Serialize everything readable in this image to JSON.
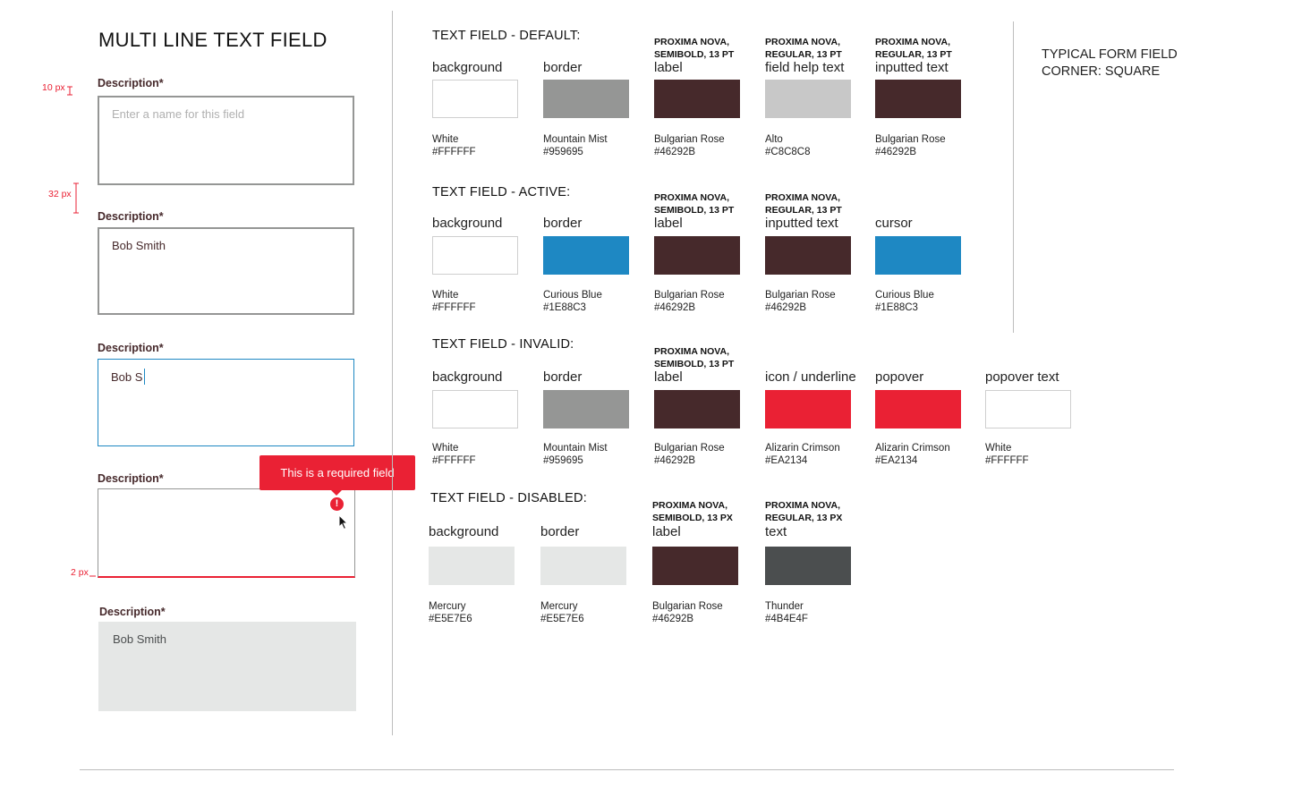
{
  "title": "MULTI LINE TEXT FIELD",
  "fields": {
    "label": "Description*",
    "default_placeholder": "Enter a name for this field",
    "filled_value": "Bob Smith",
    "active_value": "Bob S",
    "disabled_value": "Bob Smith",
    "error_popover": "This is a required field",
    "error_icon_glyph": "!"
  },
  "measurements": {
    "padding": "10 px",
    "spacing": "32 px",
    "underline": "2 px"
  },
  "note": {
    "line1": "TYPICAL FORM FIELD",
    "line2": "CORNER:  SQUARE"
  },
  "sections": {
    "default": {
      "title": "TEXT FIELD - DEFAULT:",
      "items": [
        {
          "font1": "",
          "font2": "",
          "head": "background",
          "name": "White",
          "hex": "#FFFFFF",
          "color": "#FFFFFF"
        },
        {
          "font1": "",
          "font2": "",
          "head": "border",
          "name": "Mountain Mist",
          "hex": "#959695",
          "color": "#959695"
        },
        {
          "font1": "PROXIMA NOVA,",
          "font2": "SEMIBOLD, 13 PT",
          "head": "label",
          "name": "Bulgarian Rose",
          "hex": "#46292B",
          "color": "#46292B"
        },
        {
          "font1": "PROXIMA NOVA,",
          "font2": "REGULAR, 13 PT",
          "head": "field help text",
          "name": "Alto",
          "hex": "#C8C8C8",
          "color": "#C8C8C8"
        },
        {
          "font1": "PROXIMA NOVA,",
          "font2": "REGULAR, 13 PT",
          "head": "inputted text",
          "name": "Bulgarian Rose",
          "hex": "#46292B",
          "color": "#46292B"
        }
      ]
    },
    "active": {
      "title": "TEXT FIELD - ACTIVE:",
      "items": [
        {
          "font1": "",
          "font2": "",
          "head": "background",
          "name": "White",
          "hex": "#FFFFFF",
          "color": "#FFFFFF"
        },
        {
          "font1": "",
          "font2": "",
          "head": "border",
          "name": "Curious Blue",
          "hex": "#1E88C3",
          "color": "#1E88C3"
        },
        {
          "font1": "PROXIMA NOVA,",
          "font2": "SEMIBOLD, 13 PT",
          "head": "label",
          "name": "Bulgarian Rose",
          "hex": "#46292B",
          "color": "#46292B"
        },
        {
          "font1": "PROXIMA NOVA,",
          "font2": "REGULAR, 13 PT",
          "head": "inputted text",
          "name": "Bulgarian Rose",
          "hex": "#46292B",
          "color": "#46292B"
        },
        {
          "font1": "",
          "font2": "",
          "head": "cursor",
          "name": "Curious Blue",
          "hex": "#1E88C3",
          "color": "#1E88C3"
        }
      ]
    },
    "invalid": {
      "title": "TEXT FIELD - INVALID:",
      "items": [
        {
          "font1": "",
          "font2": "",
          "head": "background",
          "name": "White",
          "hex": "#FFFFFF",
          "color": "#FFFFFF"
        },
        {
          "font1": "",
          "font2": "",
          "head": "border",
          "name": "Mountain Mist",
          "hex": "#959695",
          "color": "#959695"
        },
        {
          "font1": "PROXIMA NOVA,",
          "font2": "SEMIBOLD, 13 PT",
          "head": "label",
          "name": "Bulgarian Rose",
          "hex": "#46292B",
          "color": "#46292B"
        },
        {
          "font1": "",
          "font2": "",
          "head": "icon / underline",
          "name": "Alizarin Crimson",
          "hex": "#EA2134",
          "color": "#EA2134"
        },
        {
          "font1": "",
          "font2": "",
          "head": "popover",
          "name": "Alizarin Crimson",
          "hex": "#EA2134",
          "color": "#EA2134"
        },
        {
          "font1": "",
          "font2": "",
          "head": "popover text",
          "name": "White",
          "hex": "#FFFFFF",
          "color": "#FFFFFF"
        }
      ]
    },
    "disabled": {
      "title": "TEXT FIELD - DISABLED:",
      "items": [
        {
          "font1": "",
          "font2": "",
          "head": "background",
          "name": "Mercury",
          "hex": "#E5E7E6",
          "color": "#E5E7E6"
        },
        {
          "font1": "",
          "font2": "",
          "head": "border",
          "name": "Mercury",
          "hex": "#E5E7E6",
          "color": "#E5E7E6"
        },
        {
          "font1": "PROXIMA NOVA,",
          "font2": "SEMIBOLD, 13 PX",
          "head": "label",
          "name": "Bulgarian Rose",
          "hex": "#46292B",
          "color": "#46292B"
        },
        {
          "font1": "PROXIMA NOVA,",
          "font2": "REGULAR, 13 PX",
          "head": "text",
          "name": "Thunder",
          "hex": "#4B4E4F",
          "color": "#4B4E4F"
        }
      ]
    }
  }
}
